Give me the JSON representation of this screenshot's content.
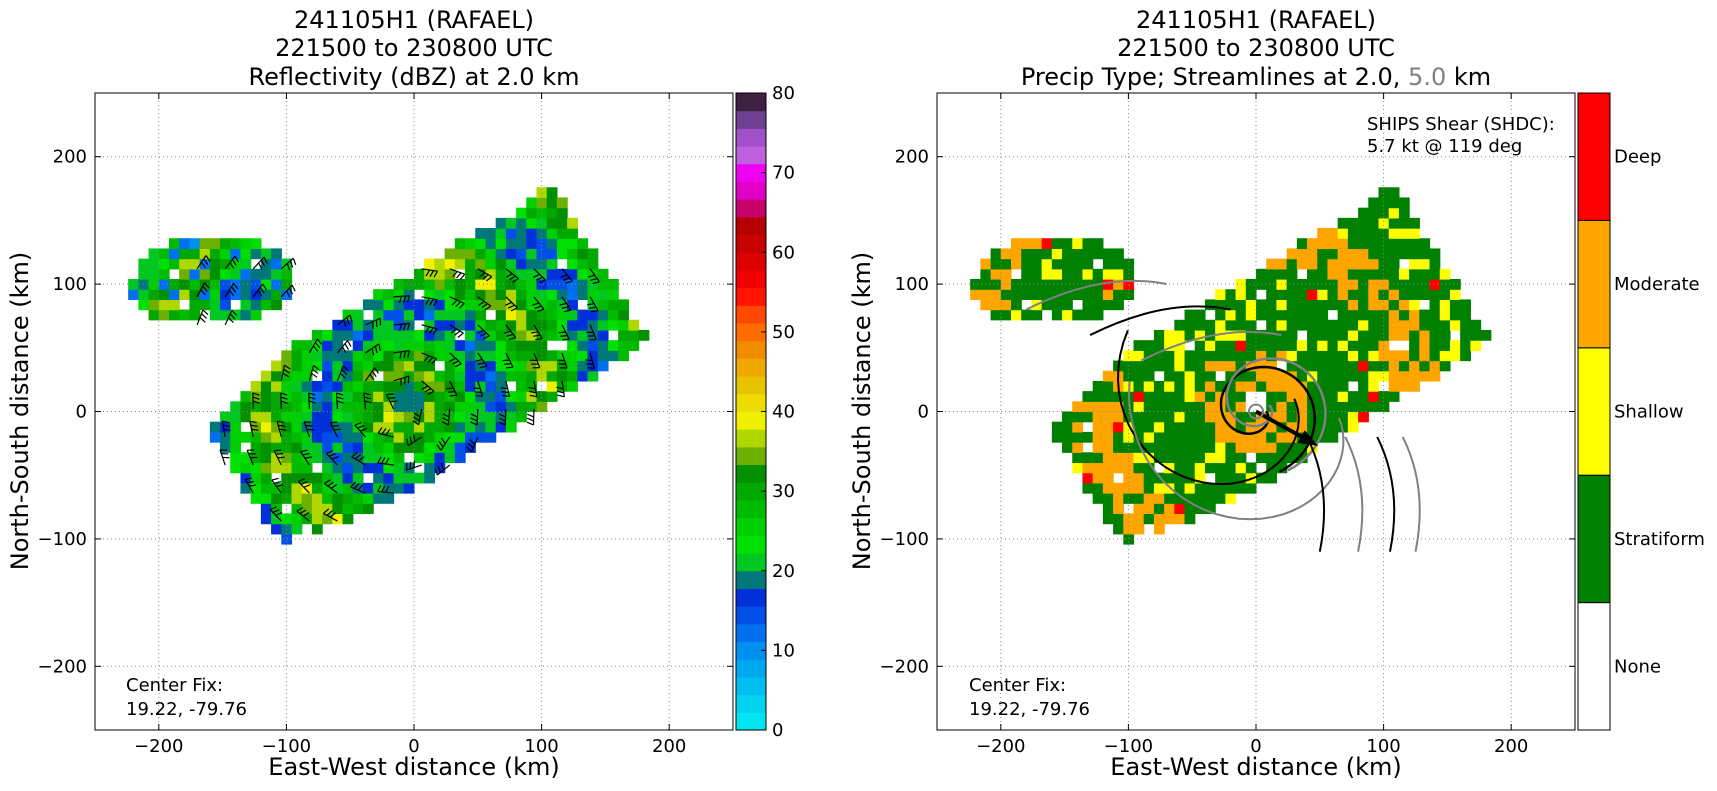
{
  "panels": [
    {
      "title_line1": "241105H1 (RAFAEL)",
      "title_line2": "221500 to 230800 UTC",
      "title_line3": "Reflectivity (dBZ) at 2.0 km",
      "xlabel": "East-West distance (km)",
      "ylabel": "North-South distance (km)",
      "center_fix_label": "Center Fix:",
      "center_fix_value": "19.22, -79.76"
    },
    {
      "title_line1": "241105H1 (RAFAEL)",
      "title_line2": "221500 to 230800 UTC",
      "title_line3_a": "Precip Type; Streamlines at 2.0,",
      "title_line3_b": "5.0",
      "title_line3_c": "km",
      "xlabel": "East-West distance (km)",
      "ylabel": "North-South distance (km)",
      "center_fix_label": "Center Fix:",
      "center_fix_value": "19.22, -79.76",
      "shear_label": "SHIPS Shear (SHDC):",
      "shear_value": "5.7 kt @ 119 deg"
    }
  ],
  "chart_data": [
    {
      "type": "heatmap",
      "title": "241105H1 (RAFAEL) 221500 to 230800 UTC Reflectivity (dBZ) at 2.0 km",
      "xlabel": "East-West distance (km)",
      "ylabel": "North-South distance (km)",
      "xlim": [
        -250,
        250
      ],
      "ylim": [
        -250,
        250
      ],
      "xticks": [
        -200,
        -100,
        0,
        100,
        200
      ],
      "yticks": [
        -200,
        -100,
        0,
        100,
        200
      ],
      "grid": true,
      "colorbar": {
        "range": [
          0,
          80
        ],
        "step": 2.5,
        "ticks": [
          0,
          10,
          20,
          30,
          40,
          50,
          60,
          70,
          80
        ],
        "colors": [
          "#00e5ef",
          "#00d2f0",
          "#00bff0",
          "#00a8f0",
          "#0090f0",
          "#0070f0",
          "#0050e8",
          "#0030d8",
          "#00787a",
          "#00c820",
          "#00e000",
          "#00d000",
          "#00bb00",
          "#00a800",
          "#009000",
          "#6cb000",
          "#b0d800",
          "#f0f000",
          "#ecdc00",
          "#e8c400",
          "#f0a800",
          "#f08c00",
          "#ff6c00",
          "#ff4800",
          "#ff1400",
          "#f00000",
          "#dc0000",
          "#c80000",
          "#b40000",
          "#c8006c",
          "#e000c8",
          "#f000f0",
          "#c060e0",
          "#a050c8",
          "#704090",
          "#402040"
        ]
      },
      "center_fix": [
        19.22,
        -79.76
      ]
    },
    {
      "type": "heatmap",
      "title": "241105H1 (RAFAEL) 221500 to 230800 UTC Precip Type; Streamlines at 2.0, 5.0 km",
      "xlabel": "East-West distance (km)",
      "ylabel": "North-South distance (km)",
      "xlim": [
        -250,
        250
      ],
      "ylim": [
        -250,
        250
      ],
      "xticks": [
        -200,
        -100,
        0,
        100,
        200
      ],
      "yticks": [
        -200,
        -100,
        0,
        100,
        200
      ],
      "grid": true,
      "categories": [
        "None",
        "Stratiform",
        "Shallow",
        "Moderate",
        "Deep"
      ],
      "category_colors": [
        "#ffffff",
        "#008000",
        "#ffff00",
        "#ffa500",
        "#ff0000"
      ],
      "streamline_levels_km": [
        2.0,
        5.0
      ],
      "streamline_colors": [
        "#000000",
        "#808080"
      ],
      "shear": {
        "speed_kt": 5.7,
        "direction_deg": 119
      },
      "center_fix": [
        19.22,
        -79.76
      ]
    }
  ]
}
